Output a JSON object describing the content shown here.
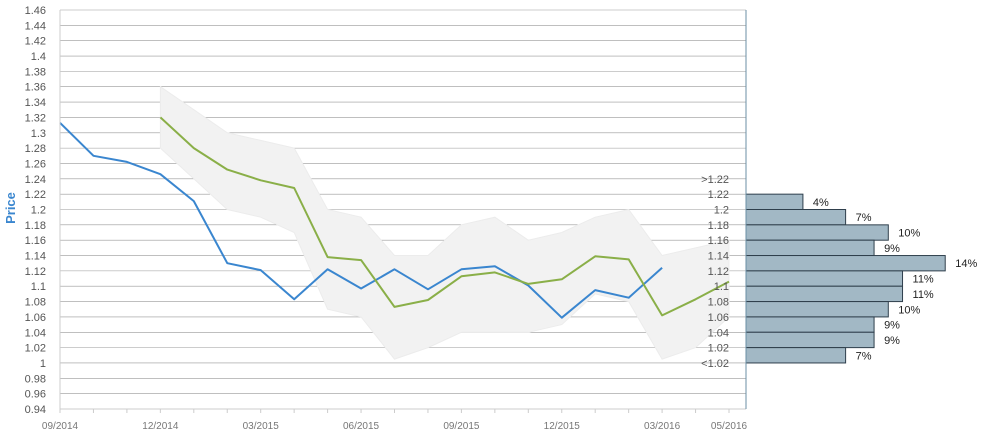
{
  "chart_data": {
    "type": "line",
    "ylabel": "Price",
    "ylim": [
      0.94,
      1.46
    ],
    "yticks": [
      "1.46",
      "1.44",
      "1.42",
      "1.4",
      "1.38",
      "1.36",
      "1.34",
      "1.32",
      "1.3",
      "1.28",
      "1.26",
      "1.24",
      "1.22",
      "1.2",
      "1.18",
      "1.16",
      "1.14",
      "1.12",
      "1.1",
      "1.08",
      "1.06",
      "1.04",
      "1.02",
      "1",
      "0.98",
      "0.96",
      "0.94"
    ],
    "xticks": [
      "09/2014",
      "12/2014",
      "03/2015",
      "06/2015",
      "09/2015",
      "12/2015",
      "03/2016",
      "05/2016"
    ],
    "colors": {
      "actual": "#3a86cf",
      "forecast": "#8aaf48",
      "band": "#e8e8e8",
      "bars": "#a2b8c5",
      "bar_border": "#2f3f4c",
      "axis_label": "#3a86cf",
      "grid": "#999999"
    },
    "series": [
      {
        "key": "actual",
        "x": [
          "09/2014",
          "10/2014",
          "11/2014",
          "12/2014",
          "01/2015",
          "02/2015",
          "03/2015",
          "04/2015",
          "05/2015",
          "06/2015",
          "07/2015",
          "08/2015",
          "09/2015",
          "10/2015",
          "11/2015",
          "12/2015",
          "01/2016",
          "02/2016",
          "03/2016"
        ],
        "values": [
          1.313,
          1.27,
          1.262,
          1.246,
          1.211,
          1.13,
          1.121,
          1.083,
          1.122,
          1.097,
          1.122,
          1.096,
          1.122,
          1.126,
          1.101,
          1.059,
          1.095,
          1.085,
          1.124
        ]
      },
      {
        "key": "forecast",
        "x": [
          "12/2014",
          "01/2015",
          "02/2015",
          "03/2015",
          "04/2015",
          "05/2015",
          "06/2015",
          "07/2015",
          "08/2015",
          "09/2015",
          "10/2015",
          "11/2015",
          "12/2015",
          "01/2016",
          "02/2016",
          "03/2016",
          "04/2016",
          "05/2016"
        ],
        "values": [
          1.32,
          1.28,
          1.252,
          1.238,
          1.228,
          1.138,
          1.134,
          1.073,
          1.082,
          1.113,
          1.118,
          1.103,
          1.109,
          1.139,
          1.135,
          1.062,
          1.083,
          1.106
        ]
      }
    ],
    "band": {
      "x": [
        "12/2014",
        "01/2015",
        "02/2015",
        "03/2015",
        "04/2015",
        "05/2015",
        "06/2015",
        "07/2015",
        "08/2015",
        "09/2015",
        "10/2015",
        "11/2015",
        "12/2015",
        "01/2016",
        "02/2016",
        "03/2016",
        "04/2016",
        "05/2016"
      ],
      "upper": [
        1.36,
        1.33,
        1.3,
        1.29,
        1.28,
        1.2,
        1.19,
        1.14,
        1.14,
        1.18,
        1.19,
        1.16,
        1.17,
        1.19,
        1.2,
        1.14,
        1.15,
        1.16
      ],
      "lower": [
        1.28,
        1.24,
        1.2,
        1.19,
        1.17,
        1.07,
        1.06,
        1.005,
        1.02,
        1.04,
        1.04,
        1.04,
        1.05,
        1.09,
        1.08,
        1.005,
        1.02,
        1.06
      ]
    },
    "distribution": {
      "labels": [
        ">1.22",
        "1.22",
        "1.2",
        "1.18",
        "1.16",
        "1.14",
        "1.12",
        "1.1",
        "1.08",
        "1.06",
        "1.04",
        "1.02",
        "<1.02"
      ],
      "bins": [
        {
          "from": 1.2,
          "to": 1.22,
          "pct": 4,
          "label": "4%"
        },
        {
          "from": 1.18,
          "to": 1.2,
          "pct": 7,
          "label": "7%"
        },
        {
          "from": 1.16,
          "to": 1.18,
          "pct": 10,
          "label": "10%"
        },
        {
          "from": 1.14,
          "to": 1.16,
          "pct": 9,
          "label": "9%"
        },
        {
          "from": 1.12,
          "to": 1.14,
          "pct": 14,
          "label": "14%"
        },
        {
          "from": 1.1,
          "to": 1.12,
          "pct": 11,
          "label": "11%"
        },
        {
          "from": 1.08,
          "to": 1.1,
          "pct": 11,
          "label": "11%"
        },
        {
          "from": 1.06,
          "to": 1.08,
          "pct": 10,
          "label": "10%"
        },
        {
          "from": 1.04,
          "to": 1.06,
          "pct": 9,
          "label": "9%"
        },
        {
          "from": 1.02,
          "to": 1.04,
          "pct": 9,
          "label": "9%"
        },
        {
          "from": 1.0,
          "to": 1.02,
          "pct": 7,
          "label": "7%"
        }
      ]
    }
  }
}
